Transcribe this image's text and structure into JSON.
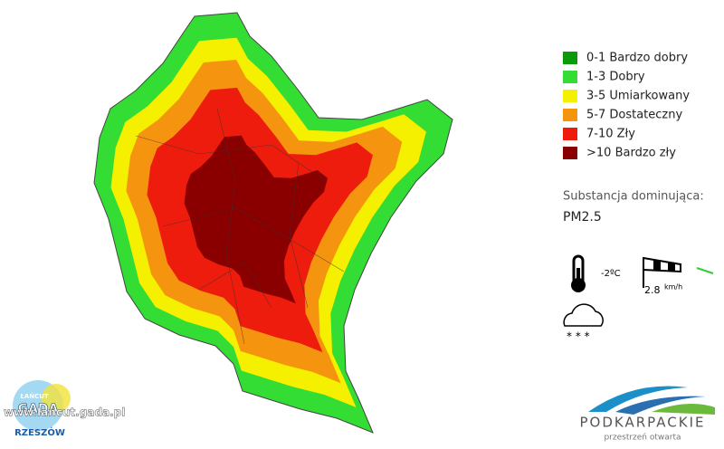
{
  "legend": [
    {
      "label": "0-1 Bardzo dobry",
      "color": "#0a9a0a"
    },
    {
      "label": "1-3 Dobry",
      "color": "#33dd33"
    },
    {
      "label": "3-5 Umiarkowany",
      "color": "#f4f000"
    },
    {
      "label": "5-7 Dostateczny",
      "color": "#f5950f"
    },
    {
      "label": "7-10 Zły",
      "color": "#ee1c0c"
    },
    {
      "label": ">10 Bardzo zły",
      "color": "#8a0000"
    }
  ],
  "substance": {
    "label": "Substancja dominująca:",
    "value": "PM2.5"
  },
  "weather": {
    "temperature": "-2ºC",
    "wind_speed": "2.8",
    "wind_unit": "km/h"
  },
  "logo": {
    "name": "PODKARPACKIE",
    "tagline": "przestrzeń otwarta"
  },
  "watermark": {
    "url": "www.lancut.gada.pl",
    "brand": "GADA",
    "town": "ŁAŃCUT",
    "city": "RZESZÓW"
  }
}
